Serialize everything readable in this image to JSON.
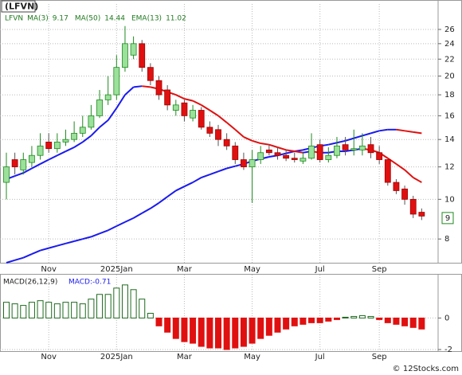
{
  "chart_data": [
    {
      "type": "candlestick",
      "title": "(LFVN)",
      "log": true,
      "grid": true,
      "legend": [
        {
          "name": "LFVN",
          "color": "#1f7a1f"
        },
        {
          "name": "MA(3)",
          "value": 9.17,
          "color": "#1f7a1f"
        },
        {
          "name": "MA(50)",
          "value": 14.44,
          "color": "#1f7a1f"
        },
        {
          "name": "EMA(13)",
          "value": 11.02,
          "color": "#1f7a1f"
        }
      ],
      "categories": [
        null,
        null,
        null,
        null,
        null,
        "Nov",
        null,
        null,
        null,
        null,
        null,
        null,
        null,
        "2025Jan",
        null,
        null,
        null,
        null,
        null,
        null,
        null,
        "Mar",
        null,
        null,
        null,
        null,
        null,
        null,
        null,
        "May",
        null,
        null,
        null,
        null,
        null,
        null,
        null,
        "Jul",
        null,
        null,
        null,
        null,
        null,
        null,
        "Sep",
        null,
        null,
        null,
        null,
        null
      ],
      "open": [
        11,
        12.5,
        11.8,
        12.3,
        12.8,
        13.8,
        13.3,
        13.8,
        14,
        14.5,
        15,
        16,
        17.5,
        18,
        21,
        22.5,
        24,
        21,
        19.5,
        18.5,
        16.5,
        17.2,
        15.8,
        16.5,
        15,
        14.8,
        14,
        13.5,
        12.5,
        12,
        12.5,
        13.2,
        13,
        12.8,
        12.6,
        12.4,
        12.6,
        13.6,
        12.5,
        12.8,
        13.6,
        13.2,
        13.2,
        13.6,
        13,
        12.5,
        11,
        10.6,
        10,
        9.3
      ],
      "high": [
        13,
        13,
        13,
        13.5,
        14.5,
        14.5,
        14.5,
        14.8,
        15.5,
        16,
        17,
        18.5,
        20,
        22.5,
        26.5,
        25,
        24.5,
        21.5,
        20,
        19,
        17.5,
        17.5,
        17,
        16.8,
        15.5,
        15.2,
        14.5,
        13.8,
        13,
        13.2,
        13.5,
        13.6,
        13.4,
        13.2,
        13,
        13,
        14.5,
        14,
        13.4,
        14.2,
        14.2,
        14.8,
        14.5,
        14.2,
        13.5,
        12.5,
        11.2,
        10.8,
        10.2,
        9.5
      ],
      "low": [
        10,
        11.5,
        11.5,
        12,
        12.5,
        13,
        13,
        13.5,
        13.8,
        14.2,
        14.8,
        15.8,
        17,
        17.5,
        20.5,
        22,
        20.5,
        19,
        17.5,
        16.5,
        16,
        15.5,
        15.5,
        14.8,
        14.2,
        13.5,
        13.2,
        12.2,
        11.8,
        9.8,
        12.2,
        12.8,
        12.5,
        12.4,
        12.3,
        12.2,
        12.5,
        12.3,
        12.3,
        12.6,
        12.8,
        12.8,
        12.8,
        12.6,
        12.2,
        10.8,
        10.3,
        9.7,
        9,
        8.9
      ],
      "close": [
        12,
        12,
        12.5,
        12.8,
        13.5,
        13.3,
        13.8,
        14,
        14.5,
        15,
        16,
        17.5,
        18,
        21,
        24,
        24,
        21,
        19.5,
        18,
        17,
        17,
        16,
        16.5,
        15,
        14.5,
        14,
        13.5,
        12.5,
        12,
        12.5,
        13,
        13,
        12.8,
        12.6,
        12.5,
        12.6,
        13.5,
        12.5,
        12.8,
        13.5,
        13.2,
        13.3,
        13.5,
        13,
        12.5,
        11,
        10.5,
        10,
        9.2,
        9.1
      ],
      "up_color": "#9be09b",
      "up_edge": "#1f8a1f",
      "down_color": "#e01010",
      "down_edge": "#a00000",
      "rising_color": "#1a1aee",
      "falling_color": "#e01010",
      "series": [
        {
          "name": "MA(50)",
          "values": [
            7.0,
            7.1,
            7.2,
            7.35,
            7.5,
            7.6,
            7.7,
            7.8,
            7.9,
            8.0,
            8.1,
            8.25,
            8.4,
            8.6,
            8.8,
            9.0,
            9.25,
            9.5,
            9.8,
            10.15,
            10.5,
            10.75,
            11.0,
            11.3,
            11.5,
            11.7,
            11.9,
            12.05,
            12.2,
            12.4,
            12.55,
            12.7,
            12.8,
            12.95,
            13.1,
            13.2,
            13.35,
            13.5,
            13.6,
            13.75,
            13.9,
            14.1,
            14.3,
            14.5,
            14.7,
            14.8,
            14.8,
            14.7,
            14.6,
            14.5
          ]
        },
        {
          "name": "EMA(13)",
          "values": [
            11.2,
            11.4,
            11.6,
            11.9,
            12.2,
            12.5,
            12.8,
            13.1,
            13.4,
            13.8,
            14.3,
            15.0,
            15.6,
            16.7,
            18.0,
            18.8,
            18.9,
            18.8,
            18.6,
            18.3,
            18.0,
            17.6,
            17.4,
            17.0,
            16.5,
            16.0,
            15.4,
            14.8,
            14.2,
            13.9,
            13.7,
            13.6,
            13.4,
            13.2,
            13.1,
            13.0,
            13.1,
            13.0,
            13.0,
            13.1,
            13.1,
            13.2,
            13.3,
            13.2,
            13.0,
            12.6,
            12.2,
            11.8,
            11.3,
            11.0
          ]
        }
      ],
      "last_price": 9,
      "ylim": [
        7,
        30
      ],
      "yticks": [
        8,
        10,
        12,
        14,
        16,
        18,
        20,
        22,
        24,
        26
      ]
    },
    {
      "type": "bar",
      "title": "MACD(26,12,9)",
      "subtitle": "MACD:-0.71",
      "grid": true,
      "pos_color": "#1f6a1f",
      "neg_color": "#e01010",
      "categories": [
        null,
        null,
        null,
        null,
        null,
        "Nov",
        null,
        null,
        null,
        null,
        null,
        null,
        null,
        "2025Jan",
        null,
        null,
        null,
        null,
        null,
        null,
        null,
        "Mar",
        null,
        null,
        null,
        null,
        null,
        null,
        null,
        "May",
        null,
        null,
        null,
        null,
        null,
        null,
        null,
        "Jul",
        null,
        null,
        null,
        null,
        null,
        null,
        "Sep",
        null,
        null,
        null,
        null,
        null
      ],
      "values": [
        1.0,
        0.9,
        0.8,
        1.0,
        1.1,
        1.0,
        0.9,
        1.0,
        1.0,
        0.9,
        1.2,
        1.5,
        1.5,
        1.9,
        2.1,
        1.8,
        1.2,
        0.3,
        -0.5,
        -0.9,
        -1.3,
        -1.5,
        -1.6,
        -1.8,
        -1.9,
        -1.9,
        -2.0,
        -1.9,
        -1.8,
        -1.6,
        -1.3,
        -1.1,
        -0.9,
        -0.7,
        -0.5,
        -0.4,
        -0.3,
        -0.3,
        -0.2,
        -0.1,
        0.05,
        0.1,
        0.15,
        0.1,
        -0.1,
        -0.3,
        -0.4,
        -0.5,
        -0.6,
        -0.7
      ],
      "ylim": [
        -2.05,
        2.75
      ],
      "yticks": [
        0,
        -2
      ]
    }
  ],
  "watermark": "© 12Stocks.com"
}
